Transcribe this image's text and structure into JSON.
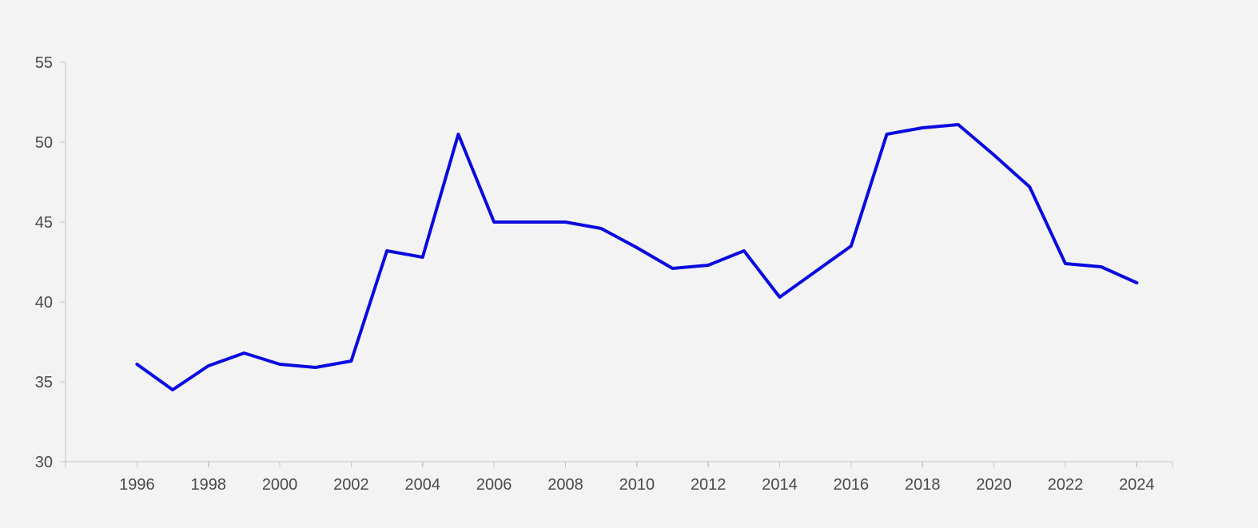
{
  "chart_data": {
    "type": "line",
    "title": "",
    "xlabel": "",
    "ylabel": "",
    "xlim": [
      1994,
      2025
    ],
    "ylim": [
      30,
      55
    ],
    "x_ticks": [
      1996,
      1998,
      2000,
      2002,
      2004,
      2006,
      2008,
      2010,
      2012,
      2014,
      2016,
      2018,
      2020,
      2022,
      2024
    ],
    "y_ticks": [
      30,
      35,
      40,
      45,
      50,
      55
    ],
    "grid": false,
    "legend": "none",
    "series": [
      {
        "color": "#0a0adf",
        "x": [
          1996,
          1997,
          1998,
          1999,
          2000,
          2001,
          2002,
          2003,
          2004,
          2005,
          2006,
          2007,
          2008,
          2009,
          2010,
          2011,
          2012,
          2013,
          2014,
          2015,
          2016,
          2017,
          2018,
          2019,
          2020,
          2021,
          2022,
          2023,
          2024
        ],
        "values": [
          36.1,
          34.5,
          36.0,
          36.8,
          36.1,
          35.9,
          36.3,
          43.2,
          42.8,
          50.5,
          45.0,
          45.0,
          45.0,
          44.6,
          43.4,
          42.1,
          42.3,
          43.2,
          40.3,
          41.9,
          43.5,
          50.5,
          50.9,
          51.1,
          49.2,
          47.2,
          42.4,
          42.2,
          41.2
        ]
      }
    ]
  }
}
